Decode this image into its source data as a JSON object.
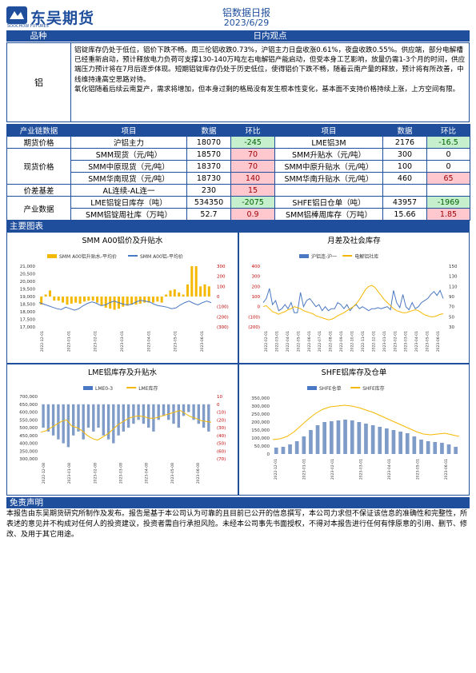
{
  "header": {
    "company": "东吴期货",
    "company_sub": "SOOCHOW FUTURES",
    "title": "铝数据日报",
    "date": "2023/6/29"
  },
  "view": {
    "col_product": "品种",
    "col_view": "日内观点",
    "product": "铝",
    "paragraphs": [
      "铝锭库存仍处于低位，铝价下跌不畅。周三伦铝收跌0.73%，沪铝主力日盘收涨0.61%，夜盘收跌0.55%。供应端，部分电解槽已经重新启动，预计释放电力负荷可支撑130-140万吨左右电解铝产能启动，但受本身工艺影响，放量仍需1-3个月的时间，供应端压力预计将在7月后逐步体现。短期铝锭库存仍处于历史低位，使得铝价下跌不畅，随着云南产量的释放，预计将有所改善，中线维持逢高空思路对待。",
      "氧化铝随着后续云南复产，需求将增加，但本身过剩的格局没有发生根本性变化，基本面不支持价格持续上涨，上方空间有限。"
    ]
  },
  "table": {
    "headers": [
      "产业链数据",
      "项目",
      "数据",
      "环比",
      "项目",
      "数据",
      "环比"
    ],
    "rows": [
      {
        "group": "期货价格",
        "item1": "沪铝主力",
        "val1": "18070",
        "chg1": "-245",
        "item2": "LME铝3M",
        "val2": "2176",
        "chg2": "-16.5"
      },
      {
        "group": "现货价格",
        "item1": "SMM现货（元/吨）",
        "val1": "18570",
        "chg1": "70",
        "item2": "SMM升贴水（元/吨）",
        "val2": "300",
        "chg2": "0"
      },
      {
        "group": "",
        "item1": "SMM中原现货（元/吨）",
        "val1": "18370",
        "chg1": "70",
        "item2": "SMM中原升贴水（元/吨）",
        "val2": "100",
        "chg2": "0"
      },
      {
        "group": "",
        "item1": "SMM华南现货（元/吨）",
        "val1": "18730",
        "chg1": "140",
        "item2": "SMM华南升贴水（元/吨）",
        "val2": "460",
        "chg2": "65"
      },
      {
        "group": "价差基差",
        "item1": "AL连续-AL连一",
        "val1": "230",
        "chg1": "15",
        "item2": "",
        "val2": "",
        "chg2": ""
      },
      {
        "group": "产业数据",
        "item1": "LME铝锭日库存（吨）",
        "val1": "534350",
        "chg1": "-2075",
        "item2": "SHFE铝日仓单（吨）",
        "val2": "43957",
        "chg2": "-1969"
      },
      {
        "group": "",
        "item1": "SMM铝锭周社库（万吨）",
        "val1": "52.7",
        "chg1": "0.9",
        "item2": "SMM铝棒周库存（万吨）",
        "val2": "15.66",
        "chg2": "1.85"
      }
    ]
  },
  "charts_header": "主要图表",
  "disclaimer_header": "免责声明",
  "disclaimer": "本报告由东吴期货研究所制作及发布。报告是基于本公司认为可靠的且目前已公开的信息撰写，本公司力求但不保证该信息的准确性和完整性，所表述的意见并不构成对任何人的投资建议，投资者需自行承担风险。未经本公司事先书面授权，不得对本报告进行任何有悖原意的引用、删节、修改、及用于其它用途。",
  "colors": {
    "brand": "#1f4e9c",
    "gold": "#f5b800",
    "blue_line": "#4a78c2",
    "green": "#c6efce",
    "red": "#ffc7ce"
  },
  "chart_data": [
    {
      "type": "bar",
      "title": "SMM A00铝价及升贴水",
      "legend": [
        "SMM A00铝升贴水-平均价",
        "SMM A00铝-平均价"
      ],
      "ylim_left": [
        17000,
        21000
      ],
      "yticks_left": [
        "21,000",
        "20,500",
        "20,000",
        "19,500",
        "19,000",
        "18,500",
        "18,000",
        "17,500",
        "17,000"
      ],
      "yticks_right": [
        "300",
        "200",
        "100",
        "0",
        "(100)",
        "(200)",
        "(300)"
      ],
      "xticks": [
        "2022-12-01",
        "2023-01-01",
        "2023-02-01",
        "2023-03-01",
        "2023-04-01",
        "2023-05-01",
        "2023-06-01"
      ],
      "price": [
        18600,
        18500,
        18400,
        18300,
        18200,
        18150,
        18300,
        18200,
        18100,
        18200,
        18400,
        18550,
        18650,
        18550,
        18400,
        18450,
        18600,
        18700,
        18600,
        18500,
        18450,
        18500,
        18650,
        18750,
        18700,
        18650,
        18500,
        18400,
        18350,
        18300,
        18200,
        18250,
        18450,
        18600,
        18700,
        18550,
        18450,
        18600,
        18700,
        18600
      ],
      "premium": [
        -80,
        20,
        60,
        -40,
        -40,
        -60,
        -80,
        -70,
        -60,
        -70,
        -50,
        -40,
        -40,
        -60,
        -90,
        -110,
        -120,
        -130,
        -120,
        -100,
        -90,
        -80,
        -80,
        -70,
        -60,
        -60,
        -60,
        -50,
        -60,
        20,
        60,
        70,
        40,
        20,
        120,
        300,
        300,
        100,
        120,
        100
      ]
    },
    {
      "type": "line",
      "title": "月差及社会库存",
      "legend": [
        "沪铝连-沪一",
        "电解铝社库"
      ],
      "yticks_left": [
        "400",
        "300",
        "200",
        "100",
        "0",
        "(100)",
        "(200)"
      ],
      "yticks_right": [
        "150",
        "130",
        "110",
        "90",
        "70",
        "50",
        "30"
      ],
      "xticks": [
        "2022-02-01",
        "2022-03-01",
        "2022-04-01",
        "2022-05-01",
        "2022-06-01",
        "2022-07-01",
        "2022-08-01",
        "2022-09-01",
        "2022-10-01",
        "2022-11-01",
        "2022-12-01",
        "2023-01-01",
        "2023-02-01",
        "2023-03-01",
        "2023-04-01",
        "2023-05-01",
        "2023-06-01"
      ],
      "spread": [
        40,
        80,
        180,
        20,
        60,
        -40,
        -20,
        20,
        -20,
        40,
        -60,
        -60,
        140,
        0,
        60,
        80,
        40,
        0,
        20,
        -40,
        0,
        -40,
        -20,
        -20,
        40,
        20,
        -20,
        20,
        -40,
        0,
        20,
        -20,
        0,
        -20,
        -40,
        -20,
        -20,
        -10,
        -20,
        -10,
        0,
        -30,
        160,
        40,
        -10,
        120,
        0,
        -30,
        40,
        -20,
        0,
        40,
        60,
        80,
        120,
        150,
        110,
        160,
        80
      ],
      "stock": [
        70,
        72,
        66,
        60,
        58,
        55,
        58,
        60,
        64,
        66,
        70,
        68,
        66,
        62,
        60,
        58,
        56,
        52,
        50,
        48,
        46,
        44,
        45,
        48,
        52,
        55,
        58,
        62,
        66,
        70,
        76,
        84,
        94,
        104,
        110,
        112,
        108,
        100,
        92,
        84,
        78,
        72,
        66,
        62,
        60,
        58,
        58,
        60,
        62,
        64,
        62,
        58,
        54,
        52,
        50,
        50,
        52,
        55,
        56
      ]
    },
    {
      "type": "bar",
      "title": "LME铝库存及升贴水",
      "legend": [
        "LME0-3",
        "LME库存"
      ],
      "yticks_left": [
        "700,000",
        "650,000",
        "600,000",
        "550,000",
        "500,000",
        "450,000",
        "400,000",
        "350,000",
        "300,000"
      ],
      "yticks_right": [
        "10",
        "0",
        "(10)",
        "(20)",
        "(30)",
        "(40)",
        "(50)",
        "(60)",
        "(70)"
      ],
      "xticks": [
        "2022-12-08",
        "2023-01-08",
        "2023-02-08",
        "2023-03-08",
        "2023-04-08",
        "2023-05-08",
        "2023-06-08"
      ],
      "stock": [
        470000,
        480000,
        500000,
        520000,
        540000,
        550000,
        510000,
        500000,
        480000,
        450000,
        430000,
        420000,
        440000,
        460000,
        490000,
        520000,
        540000,
        560000,
        570000,
        575000,
        570000,
        560000,
        560000,
        570000,
        580000,
        590000,
        600000,
        610000,
        590000,
        570000,
        560000,
        545000,
        540000,
        535000
      ],
      "spread": [
        -30,
        -35,
        -40,
        -45,
        -50,
        -55,
        -40,
        -35,
        -45,
        -30,
        -35,
        -30,
        -40,
        -45,
        -50,
        -40,
        -35,
        -30,
        -25,
        -20,
        -25,
        -30,
        -35,
        -20,
        -15,
        -20,
        -25,
        -30,
        -15,
        -10,
        -20,
        -25,
        -30,
        -35
      ]
    },
    {
      "type": "bar",
      "title": "SHFE铝库存及仓单",
      "legend": [
        "SHFE仓单",
        "SHFE库存"
      ],
      "yticks_left": [
        "350,000",
        "300,000",
        "250,000",
        "200,000",
        "150,000",
        "100,000",
        "50,000",
        "0"
      ],
      "xticks": [
        "2022-12-01",
        "2023-01-01",
        "2023-02-01",
        "2023-03-01",
        "2023-04-01",
        "2023-05-01",
        "2023-06-01"
      ],
      "stock": [
        90000,
        95000,
        110000,
        140000,
        180000,
        220000,
        255000,
        280000,
        295000,
        300000,
        305000,
        300000,
        290000,
        275000,
        260000,
        240000,
        220000,
        200000,
        180000,
        160000,
        140000,
        125000,
        120000,
        125000,
        130000,
        120000,
        110000
      ],
      "warrant": [
        40000,
        45000,
        60000,
        80000,
        110000,
        150000,
        180000,
        200000,
        205000,
        210000,
        215000,
        210000,
        200000,
        190000,
        180000,
        170000,
        160000,
        150000,
        140000,
        130000,
        110000,
        90000,
        80000,
        75000,
        70000,
        60000,
        45000
      ]
    }
  ]
}
